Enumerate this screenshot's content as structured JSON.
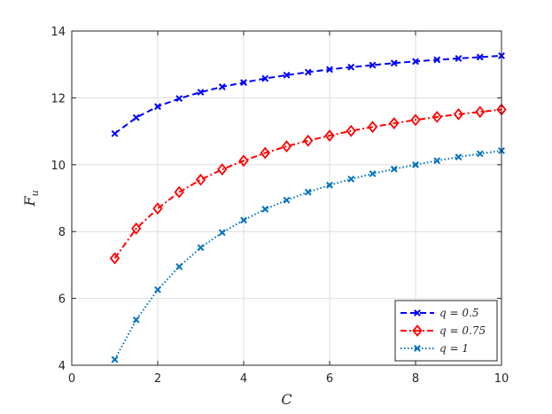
{
  "chart_data": {
    "type": "line",
    "xlabel": "C",
    "ylabel": "F_u",
    "xlim": [
      0,
      10
    ],
    "ylim": [
      4,
      14
    ],
    "xticks": [
      0,
      2,
      4,
      6,
      8,
      10
    ],
    "yticks": [
      4,
      6,
      8,
      10,
      12,
      14
    ],
    "grid": true,
    "legend_position": "bottom-right",
    "x": [
      1,
      1.5,
      2,
      2.5,
      3,
      3.5,
      4,
      4.5,
      5,
      5.5,
      6,
      6.5,
      7,
      7.5,
      8,
      8.5,
      9,
      9.5,
      10
    ],
    "series": [
      {
        "name": "q = 0.5",
        "color": "#0000ff",
        "line_style": "dashed",
        "marker": "x",
        "values": [
          10.93,
          11.41,
          11.74,
          11.98,
          12.17,
          12.33,
          12.46,
          12.58,
          12.68,
          12.77,
          12.85,
          12.92,
          12.98,
          13.04,
          13.09,
          13.14,
          13.18,
          13.22,
          13.26
        ]
      },
      {
        "name": "q = 0.75",
        "color": "#ff0000",
        "line_style": "dash-dot",
        "marker": "diamond",
        "values": [
          7.2,
          8.09,
          8.69,
          9.18,
          9.55,
          9.86,
          10.12,
          10.35,
          10.55,
          10.72,
          10.87,
          11.01,
          11.13,
          11.24,
          11.34,
          11.43,
          11.51,
          11.58,
          11.65
        ]
      },
      {
        "name": "q = 1",
        "color": "#0072bd",
        "line_style": "dotted",
        "marker": "x",
        "values": [
          4.17,
          5.36,
          6.26,
          6.95,
          7.52,
          7.97,
          8.34,
          8.67,
          8.94,
          9.18,
          9.39,
          9.57,
          9.73,
          9.87,
          10.0,
          10.12,
          10.23,
          10.33,
          10.42
        ]
      }
    ]
  }
}
